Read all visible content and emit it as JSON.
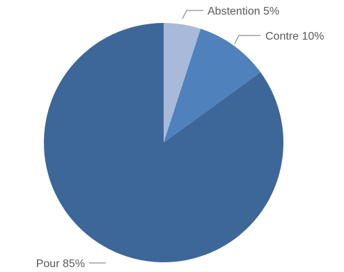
{
  "chart_data": {
    "type": "pie",
    "title": "",
    "legend": "none",
    "start_angle_deg": 0,
    "direction": "clockwise",
    "slices": [
      {
        "label": "Abstention",
        "value": 5,
        "value_label": "Abstention 5%",
        "color": "#a8b9d9"
      },
      {
        "label": "Contre",
        "value": 10,
        "value_label": "Contre 10%",
        "color": "#4f81bd"
      },
      {
        "label": "Pour",
        "value": 85,
        "value_label": "Pour 85%",
        "color": "#3d6699"
      }
    ]
  }
}
